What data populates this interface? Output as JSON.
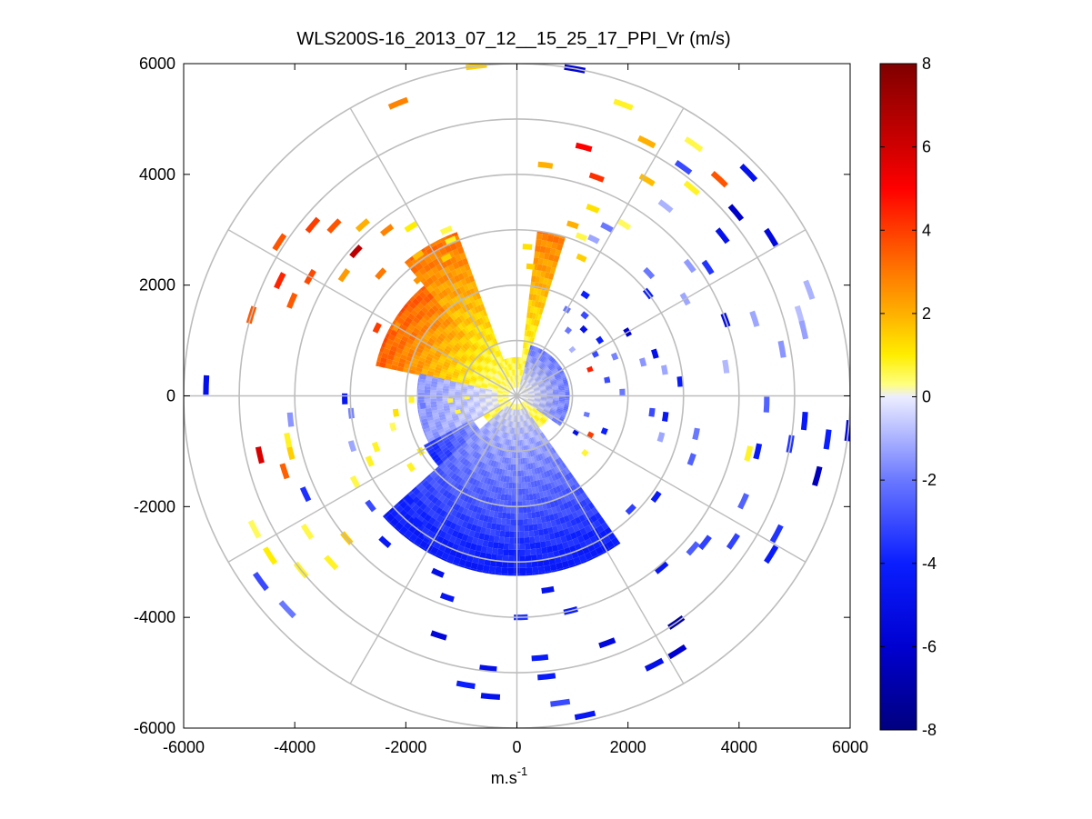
{
  "chart_data": {
    "type": "heatmap",
    "subtype": "polar-ppi",
    "title": "WLS200S-16_2013_07_12__15_25_17_PPI_Vr (m/s)",
    "xlabel": "m.s",
    "xlabel_superscript": "-1",
    "ylabel": "",
    "xlim": [
      -6000,
      6000
    ],
    "ylim": [
      -6000,
      6000
    ],
    "x_ticks": [
      -6000,
      -4000,
      -2000,
      0,
      2000,
      4000,
      6000
    ],
    "y_ticks": [
      -6000,
      -4000,
      -2000,
      0,
      2000,
      4000,
      6000
    ],
    "x_tick_labels": [
      "-6000",
      "-4000",
      "-2000",
      "0",
      "2000",
      "4000",
      "6000"
    ],
    "y_tick_labels": [
      "-6000",
      "-4000",
      "-2000",
      "0",
      "2000",
      "4000",
      "6000"
    ],
    "polar_grid": {
      "rings_m": [
        1000,
        2000,
        3000,
        4000,
        5000,
        6000
      ],
      "spokes_deg": [
        0,
        30,
        60,
        90,
        120,
        150,
        180,
        210,
        240,
        270,
        300,
        330
      ]
    },
    "colorbar": {
      "range": [
        -8,
        8
      ],
      "ticks": [
        -8,
        -6,
        -4,
        -2,
        0,
        2,
        4,
        6,
        8
      ],
      "tick_labels": [
        "-8",
        "-6",
        "-4",
        "-2",
        "0",
        "2",
        "4",
        "6",
        "8"
      ],
      "colormap": "blue-white-yellow-red",
      "stops": [
        {
          "v": -8,
          "color": "#00007f"
        },
        {
          "v": -6,
          "color": "#0000d0"
        },
        {
          "v": -4,
          "color": "#0a1eff"
        },
        {
          "v": -2,
          "color": "#6a78ff"
        },
        {
          "v": 0,
          "color": "#ecedff"
        },
        {
          "v": 0.3,
          "color": "#ffff80"
        },
        {
          "v": 1,
          "color": "#ffee00"
        },
        {
          "v": 2,
          "color": "#ffb000"
        },
        {
          "v": 3,
          "color": "#ff7800"
        },
        {
          "v": 4,
          "color": "#ff3c00"
        },
        {
          "v": 5,
          "color": "#ff0000"
        },
        {
          "v": 6,
          "color": "#d00000"
        },
        {
          "v": 8,
          "color": "#800000"
        }
      ]
    },
    "sectors": [
      {
        "az_start": 0,
        "az_end": 360,
        "r_start": 150,
        "r_end": 700,
        "v_start": 0.5,
        "v_end": 0.8
      },
      {
        "az_start": 282,
        "az_end": 320,
        "r_start": 450,
        "r_end": 2600,
        "v_start": 0.4,
        "v_end": 3.6
      },
      {
        "az_start": 320,
        "az_end": 340,
        "r_start": 450,
        "r_end": 3150,
        "v_start": 0.5,
        "v_end": 3.2
      },
      {
        "az_start": 7,
        "az_end": 17,
        "r_start": 650,
        "r_end": 3000,
        "v_start": 0.6,
        "v_end": 3.0
      },
      {
        "az_start": 240,
        "az_end": 283,
        "r_start": 350,
        "r_end": 1800,
        "v_start": -0.2,
        "v_end": -1.6
      },
      {
        "az_start": 15,
        "az_end": 125,
        "r_start": 100,
        "r_end": 950,
        "v_start": -0.2,
        "v_end": -2.2
      },
      {
        "az_start": 145,
        "az_end": 228,
        "r_start": 250,
        "r_end": 3250,
        "v_start": -0.5,
        "v_end": -4.4
      },
      {
        "az_start": 228,
        "az_end": 242,
        "r_start": 900,
        "r_end": 1900,
        "v_start": -1.5,
        "v_end": -4.0
      }
    ],
    "scatter_gates": [
      {
        "az": 338,
        "r": 5700,
        "v": 2.8
      },
      {
        "az": 353,
        "r": 6000,
        "v": 1.5
      },
      {
        "az": 10,
        "r": 6000,
        "v": -5.8
      },
      {
        "az": 20,
        "r": 5600,
        "v": 0.8
      },
      {
        "az": 27,
        "r": 5150,
        "v": 2.0
      },
      {
        "az": 15,
        "r": 4650,
        "v": 5.0
      },
      {
        "az": 20,
        "r": 4200,
        "v": 4.2
      },
      {
        "az": 35,
        "r": 5550,
        "v": 0.6
      },
      {
        "az": 36,
        "r": 5100,
        "v": -3.0
      },
      {
        "az": 31,
        "r": 4550,
        "v": 1.8
      },
      {
        "az": 38,
        "r": 4350,
        "v": -1.0
      },
      {
        "az": 7,
        "r": 4200,
        "v": 2.0
      },
      {
        "az": 22,
        "r": 3650,
        "v": 1.2
      },
      {
        "az": 28,
        "r": 3450,
        "v": -2.0
      },
      {
        "az": 32,
        "r": 3650,
        "v": 0.5
      },
      {
        "az": 40,
        "r": 4900,
        "v": 0.8
      },
      {
        "az": 43,
        "r": 5350,
        "v": 3.6
      },
      {
        "az": 46,
        "r": 5800,
        "v": -4.8
      },
      {
        "az": 50,
        "r": 5150,
        "v": -6.2
      },
      {
        "az": 52,
        "r": 4700,
        "v": -4.8
      },
      {
        "az": 58,
        "r": 5400,
        "v": -5.5
      },
      {
        "az": 56,
        "r": 4150,
        "v": -3.5
      },
      {
        "az": 53,
        "r": 3900,
        "v": -1.4
      },
      {
        "az": 60,
        "r": 3500,
        "v": -1.2
      },
      {
        "az": 47,
        "r": 3250,
        "v": -2.0
      },
      {
        "az": 52,
        "r": 3000,
        "v": -4.0
      },
      {
        "az": 70,
        "r": 4000,
        "v": -5.2
      },
      {
        "az": 72,
        "r": 4500,
        "v": -1.2
      },
      {
        "az": 74,
        "r": 5300,
        "v": -0.8
      },
      {
        "az": 70,
        "r": 5600,
        "v": -1.0
      },
      {
        "az": 77,
        "r": 5300,
        "v": -1.3
      },
      {
        "az": 80,
        "r": 4850,
        "v": -1.5
      },
      {
        "az": 82,
        "r": 3800,
        "v": -0.9
      },
      {
        "az": 73,
        "r": 2600,
        "v": -5.0
      },
      {
        "az": 80,
        "r": 2700,
        "v": -1.2
      },
      {
        "az": 75,
        "r": 2350,
        "v": -1.5
      },
      {
        "az": 60,
        "r": 2300,
        "v": -6.0
      },
      {
        "az": 68,
        "r": 1900,
        "v": -1.8
      },
      {
        "az": 85,
        "r": 2950,
        "v": -4.2
      },
      {
        "az": 92,
        "r": 4500,
        "v": -2.5
      },
      {
        "az": 95,
        "r": 5200,
        "v": -4.4
      },
      {
        "az": 98,
        "r": 5650,
        "v": -4.0
      },
      {
        "az": 96,
        "r": 6000,
        "v": -5.5
      },
      {
        "az": 100,
        "r": 5000,
        "v": -3.5
      },
      {
        "az": 103,
        "r": 4450,
        "v": -4.3
      },
      {
        "az": 105,
        "r": 5600,
        "v": -6.5
      },
      {
        "az": 98,
        "r": 2700,
        "v": -4.5
      },
      {
        "az": 97,
        "r": 2450,
        "v": -3.0
      },
      {
        "az": 102,
        "r": 3300,
        "v": -2.0
      },
      {
        "az": 106,
        "r": 2700,
        "v": -1.2
      },
      {
        "az": 110,
        "r": 3350,
        "v": -2.5
      },
      {
        "az": 104,
        "r": 4300,
        "v": 0.8
      },
      {
        "az": 115,
        "r": 4500,
        "v": -2.5
      },
      {
        "az": 118,
        "r": 5300,
        "v": -3.5
      },
      {
        "az": 122,
        "r": 5400,
        "v": -4.2
      },
      {
        "az": 124,
        "r": 4700,
        "v": -3.2
      },
      {
        "az": 128,
        "r": 4300,
        "v": -3.2
      },
      {
        "az": 131,
        "r": 4200,
        "v": -2.6
      },
      {
        "az": 126,
        "r": 3100,
        "v": -4.2
      },
      {
        "az": 135,
        "r": 2900,
        "v": -3.2
      },
      {
        "az": 140,
        "r": 4050,
        "v": -4.5
      },
      {
        "az": 145,
        "r": 5000,
        "v": -7.0
      },
      {
        "az": 148,
        "r": 5450,
        "v": -6.0
      },
      {
        "az": 153,
        "r": 5450,
        "v": -5.0
      },
      {
        "az": 160,
        "r": 4750,
        "v": -5.5
      },
      {
        "az": 168,
        "r": 5900,
        "v": -4.5
      },
      {
        "az": 172,
        "r": 5600,
        "v": -3.0
      },
      {
        "az": 174,
        "r": 5100,
        "v": -4.2
      },
      {
        "az": 175,
        "r": 4750,
        "v": -4.2
      },
      {
        "az": 179,
        "r": 4000,
        "v": -3.5
      },
      {
        "az": 171,
        "r": 3550,
        "v": -4.8
      },
      {
        "az": 166,
        "r": 4000,
        "v": -4.2
      },
      {
        "az": 185,
        "r": 5450,
        "v": -4.8
      },
      {
        "az": 186,
        "r": 4950,
        "v": -5.0
      },
      {
        "az": 190,
        "r": 5300,
        "v": -4.0
      },
      {
        "az": 198,
        "r": 4550,
        "v": -5.6
      },
      {
        "az": 199,
        "r": 3850,
        "v": -4.5
      },
      {
        "az": 204,
        "r": 3500,
        "v": -5.0
      },
      {
        "az": 212,
        "r": 3000,
        "v": -3.5
      },
      {
        "az": 218,
        "r": 2900,
        "v": -4.0
      },
      {
        "az": 222,
        "r": 3550,
        "v": -4.4
      },
      {
        "az": 226,
        "r": 2700,
        "v": -4.0
      },
      {
        "az": 233,
        "r": 3300,
        "v": -3.0
      },
      {
        "az": 230,
        "r": 4000,
        "v": 1.6
      },
      {
        "az": 228,
        "r": 4500,
        "v": 0.8
      },
      {
        "az": 237,
        "r": 4500,
        "v": 0.6
      },
      {
        "az": 231,
        "r": 5000,
        "v": 0.8
      },
      {
        "az": 227,
        "r": 5650,
        "v": -2.0
      },
      {
        "az": 234,
        "r": 5700,
        "v": -3.0
      },
      {
        "az": 237,
        "r": 5300,
        "v": 1.0
      },
      {
        "az": 243,
        "r": 5300,
        "v": 0.5
      },
      {
        "az": 245,
        "r": 4200,
        "v": -3.6
      },
      {
        "az": 242,
        "r": 3300,
        "v": 0.6
      },
      {
        "az": 246,
        "r": 2900,
        "v": 0.8
      },
      {
        "az": 250,
        "r": 2700,
        "v": 0.8
      },
      {
        "az": 256,
        "r": 2300,
        "v": 0.5
      },
      {
        "az": 253,
        "r": 3100,
        "v": -1.2
      },
      {
        "az": 256,
        "r": 4200,
        "v": 1.5
      },
      {
        "az": 252,
        "r": 4400,
        "v": 3.4
      },
      {
        "az": 257,
        "r": 4750,
        "v": 5.8
      },
      {
        "az": 259,
        "r": 4200,
        "v": 0.8
      },
      {
        "az": 264,
        "r": 4100,
        "v": -1.5
      },
      {
        "az": 264,
        "r": 3000,
        "v": -1.8
      },
      {
        "az": 269,
        "r": 3100,
        "v": -4.6
      },
      {
        "az": 262,
        "r": 2200,
        "v": 1.2
      },
      {
        "az": 264,
        "r": 1700,
        "v": -2.0
      },
      {
        "az": 266,
        "r": 1200,
        "v": 0.7
      },
      {
        "az": 262,
        "r": 1400,
        "v": -1.0
      },
      {
        "az": 268,
        "r": 1900,
        "v": 0.8
      },
      {
        "az": 272,
        "r": 5600,
        "v": -5.0
      },
      {
        "az": 287,
        "r": 5000,
        "v": 3.5
      },
      {
        "az": 296,
        "r": 4750,
        "v": 4.4
      },
      {
        "az": 293,
        "r": 4400,
        "v": 3.5
      },
      {
        "az": 303,
        "r": 5100,
        "v": 3.6
      },
      {
        "az": 300,
        "r": 4300,
        "v": 3.8
      },
      {
        "az": 310,
        "r": 4800,
        "v": 4.0
      },
      {
        "az": 305,
        "r": 3800,
        "v": 2.4
      },
      {
        "az": 313,
        "r": 4500,
        "v": 3.6
      },
      {
        "az": 312,
        "r": 3900,
        "v": 6.5
      },
      {
        "az": 318,
        "r": 4150,
        "v": 2.0
      },
      {
        "az": 312,
        "r": 3300,
        "v": 3.0
      },
      {
        "az": 322,
        "r": 3800,
        "v": 2.8
      },
      {
        "az": 328,
        "r": 3600,
        "v": 1.0
      },
      {
        "az": 325,
        "r": 3100,
        "v": 1.8
      },
      {
        "az": 337,
        "r": 3250,
        "v": 0.6
      },
      {
        "az": 337,
        "r": 3050,
        "v": 0.8
      },
      {
        "az": 320,
        "r": 2750,
        "v": 2.5
      },
      {
        "az": 333,
        "r": 2800,
        "v": 1.5
      },
      {
        "az": 18,
        "r": 3250,
        "v": 2.0
      },
      {
        "az": 22,
        "r": 3100,
        "v": 0.6
      },
      {
        "az": 26,
        "r": 3150,
        "v": -1.2
      },
      {
        "az": 25,
        "r": 2750,
        "v": 1.5
      },
      {
        "az": 34,
        "r": 2200,
        "v": -4.0
      },
      {
        "az": 40,
        "r": 1900,
        "v": -3.0
      },
      {
        "az": 30,
        "r": 1800,
        "v": -2.0
      },
      {
        "az": 45,
        "r": 1700,
        "v": -5.0
      },
      {
        "az": 38,
        "r": 1500,
        "v": -2.0
      },
      {
        "az": 50,
        "r": 1300,
        "v": -1.0
      },
      {
        "az": 56,
        "r": 1800,
        "v": -4.0
      },
      {
        "az": 62,
        "r": 1600,
        "v": -3.0
      },
      {
        "az": 70,
        "r": 1400,
        "v": 4.5
      },
      {
        "az": 80,
        "r": 1650,
        "v": -3.0
      },
      {
        "az": 88,
        "r": 1900,
        "v": -2.0
      },
      {
        "az": 112,
        "r": 1700,
        "v": -4.0
      },
      {
        "az": 118,
        "r": 1500,
        "v": 4.0
      },
      {
        "az": 122,
        "r": 1250,
        "v": -5.0
      },
      {
        "az": 105,
        "r": 1300,
        "v": -2.0
      },
      {
        "az": 130,
        "r": 1600,
        "v": 0.7
      },
      {
        "az": 240,
        "r": 2000,
        "v": 1.0
      },
      {
        "az": 236,
        "r": 2300,
        "v": 0.8
      },
      {
        "az": 268,
        "r": 900,
        "v": 0.6
      },
      {
        "az": 255,
        "r": 1100,
        "v": 0.7
      },
      {
        "az": 300,
        "r": 2500,
        "v": 2.5
      },
      {
        "az": 296,
        "r": 2800,
        "v": 4.0
      },
      {
        "az": 6,
        "r": 2350,
        "v": 1.5
      },
      {
        "az": 4,
        "r": 2700,
        "v": 1.2
      }
    ]
  }
}
